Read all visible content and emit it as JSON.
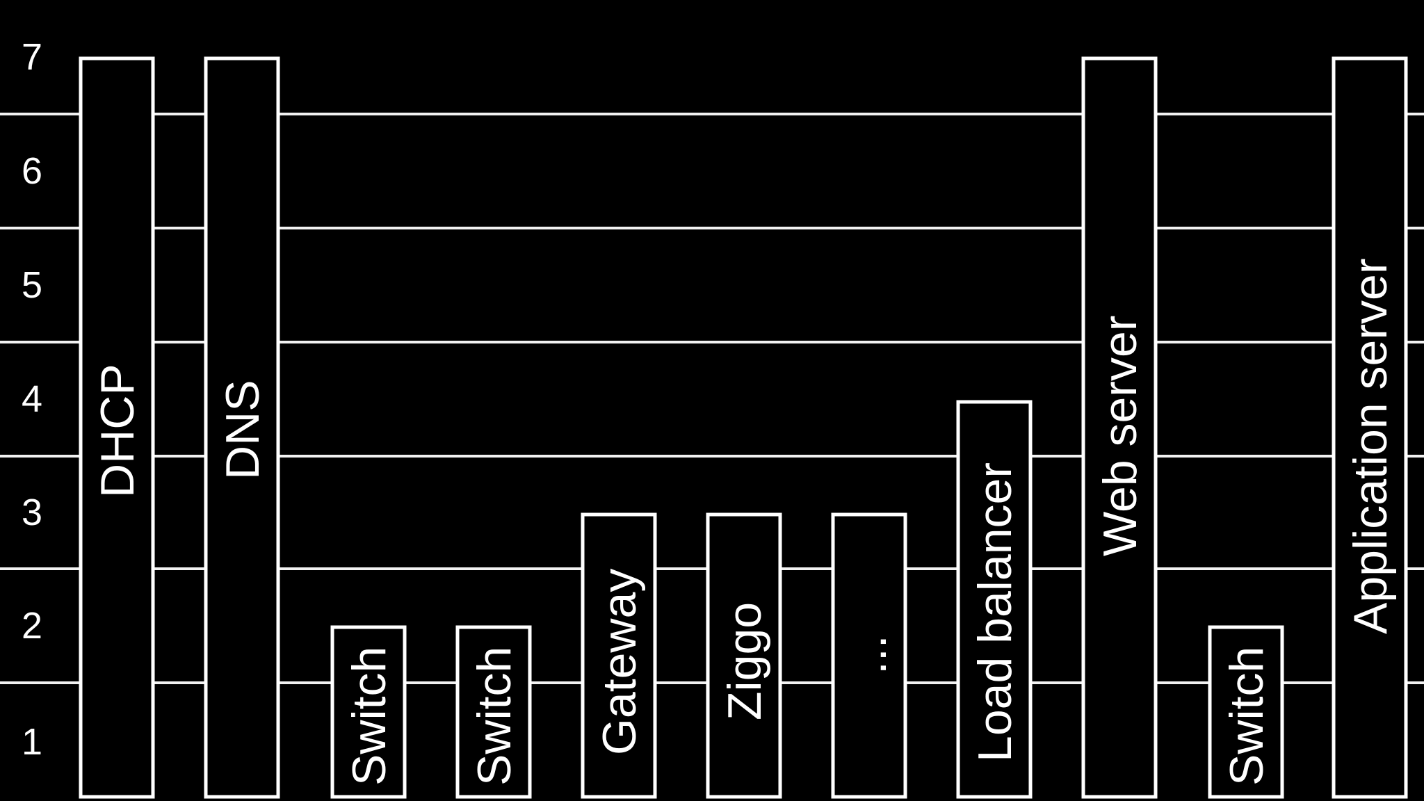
{
  "layers": [
    "1",
    "2",
    "3",
    "4",
    "5",
    "6",
    "7"
  ],
  "devices": [
    {
      "label": "DHCP",
      "top_layer": 7
    },
    {
      "label": "DNS",
      "top_layer": 7
    },
    {
      "label": "Switch",
      "top_layer": 2
    },
    {
      "label": "Switch",
      "top_layer": 2
    },
    {
      "label": "Gateway",
      "top_layer": 3
    },
    {
      "label": "Ziggo",
      "top_layer": 3
    },
    {
      "label": "...",
      "top_layer": 3
    },
    {
      "label": "Load balancer",
      "top_layer": 4
    },
    {
      "label": "Web server",
      "top_layer": 7
    },
    {
      "label": "Switch",
      "top_layer": 2
    },
    {
      "label": "Application server",
      "top_layer": 7
    }
  ],
  "colors": {
    "background": "#000000",
    "foreground": "#ffffff"
  }
}
